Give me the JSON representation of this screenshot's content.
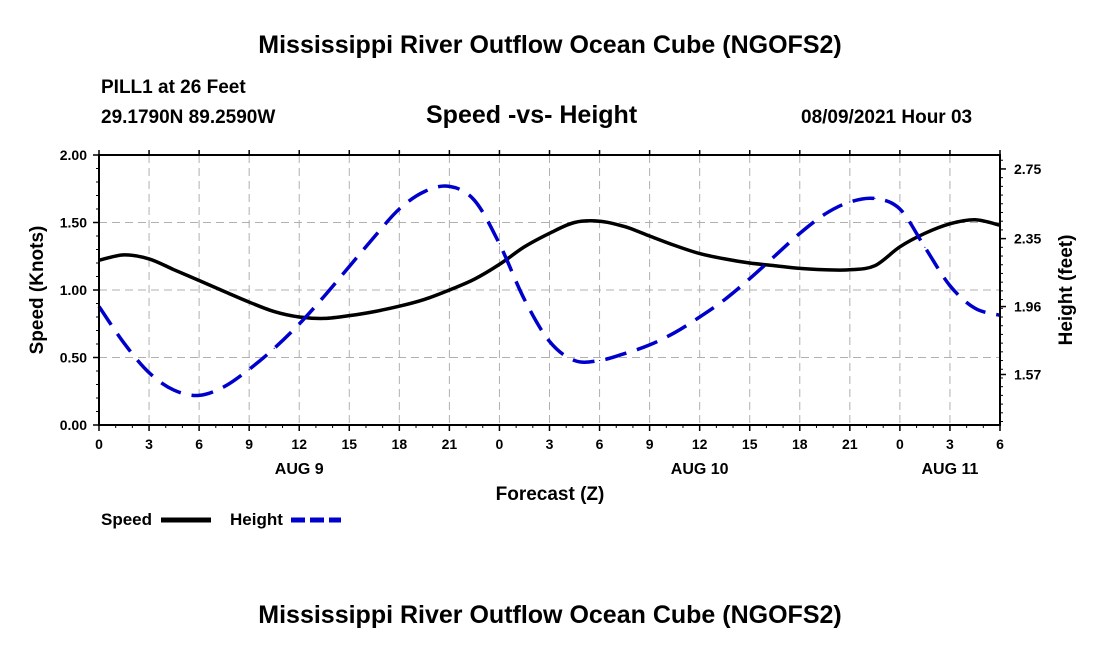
{
  "header": {
    "title": "Mississippi River Outflow Ocean Cube (NGOFS2)",
    "station": "PILL1 at 26 Feet",
    "coords": "29.1790N  89.2590W",
    "plot_title": "Speed -vs- Height",
    "datetime": "08/09/2021 Hour 03"
  },
  "footer": {
    "title": "Mississippi River Outflow Ocean Cube (NGOFS2)"
  },
  "legend": {
    "speed_label": "Speed",
    "height_label": "Height"
  },
  "colors": {
    "speed": "#000000",
    "height": "#0000cc",
    "grid": "#b0b0b0"
  },
  "chart_data": {
    "type": "line",
    "title": "Speed -vs- Height",
    "xlabel": "Forecast (Z)",
    "ylabel": "Speed (Knots)",
    "y2label": "Height (feet)",
    "xlim": [
      0,
      54
    ],
    "ylim": [
      0,
      2.0
    ],
    "y2lim": [
      1.28,
      2.83
    ],
    "x_ticks": [
      0,
      3,
      6,
      9,
      12,
      15,
      18,
      21,
      24,
      27,
      30,
      33,
      36,
      39,
      42,
      45,
      48,
      51,
      54
    ],
    "x_tick_labels": [
      "0",
      "3",
      "6",
      "9",
      "12",
      "15",
      "18",
      "21",
      "0",
      "3",
      "6",
      "9",
      "12",
      "15",
      "18",
      "21",
      "0",
      "3",
      "6"
    ],
    "date_labels": [
      {
        "x": 12,
        "label": "AUG 9"
      },
      {
        "x": 36,
        "label": "AUG 10"
      },
      {
        "x": 51,
        "label": "AUG 11"
      }
    ],
    "y_ticks": [
      0,
      0.5,
      1.0,
      1.5,
      2.0
    ],
    "y_tick_labels": [
      "0.00",
      "0.50",
      "1.00",
      "1.50",
      "2.00"
    ],
    "y2_ticks": [
      1.57,
      1.96,
      2.35,
      2.75
    ],
    "y2_tick_labels": [
      "1.57",
      "1.96",
      "2.35",
      "2.75"
    ],
    "grid": true,
    "series": [
      {
        "name": "Speed",
        "axis": "left",
        "style": "solid",
        "x": [
          0,
          1.5,
          3,
          4.5,
          6,
          7.5,
          9,
          10.5,
          12,
          13.5,
          15,
          16.5,
          18,
          19.5,
          21,
          22.5,
          24,
          25.5,
          27,
          28.5,
          30,
          31.5,
          33,
          34.5,
          36,
          37.5,
          39,
          40.5,
          42,
          43.5,
          45,
          46.5,
          48,
          49.5,
          51,
          52.5,
          54
        ],
        "values": [
          1.22,
          1.26,
          1.23,
          1.15,
          1.07,
          0.99,
          0.91,
          0.84,
          0.8,
          0.79,
          0.81,
          0.84,
          0.88,
          0.93,
          1.0,
          1.08,
          1.19,
          1.32,
          1.42,
          1.5,
          1.51,
          1.47,
          1.4,
          1.33,
          1.27,
          1.23,
          1.2,
          1.18,
          1.16,
          1.15,
          1.15,
          1.18,
          1.32,
          1.42,
          1.49,
          1.52,
          1.48
        ]
      },
      {
        "name": "Height",
        "axis": "right",
        "style": "dashed",
        "x": [
          0,
          1.5,
          3,
          4.5,
          6,
          7.5,
          9,
          10.5,
          12,
          13.5,
          15,
          16.5,
          18,
          19.5,
          21,
          22.5,
          24,
          25.5,
          27,
          28.5,
          30,
          31.5,
          33,
          34.5,
          36,
          37.5,
          39,
          40.5,
          42,
          43.5,
          45,
          46.5,
          48,
          49.5,
          51,
          52.5,
          54
        ],
        "values": [
          1.96,
          1.75,
          1.58,
          1.48,
          1.45,
          1.5,
          1.6,
          1.72,
          1.86,
          2.02,
          2.19,
          2.36,
          2.52,
          2.62,
          2.65,
          2.57,
          2.32,
          2.0,
          1.76,
          1.65,
          1.65,
          1.69,
          1.74,
          1.81,
          1.9,
          2.0,
          2.12,
          2.25,
          2.38,
          2.49,
          2.56,
          2.58,
          2.52,
          2.3,
          2.08,
          1.95,
          1.91
        ]
      }
    ]
  }
}
